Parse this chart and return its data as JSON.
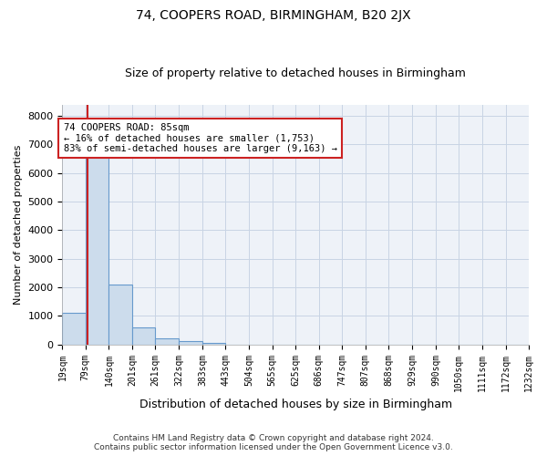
{
  "title": "74, COOPERS ROAD, BIRMINGHAM, B20 2JX",
  "subtitle": "Size of property relative to detached houses in Birmingham",
  "xlabel": "Distribution of detached houses by size in Birmingham",
  "ylabel": "Number of detached properties",
  "footer_line1": "Contains HM Land Registry data © Crown copyright and database right 2024.",
  "footer_line2": "Contains public sector information licensed under the Open Government Licence v3.0.",
  "annotation_line1": "74 COOPERS ROAD: 85sqm",
  "annotation_line2": "← 16% of detached houses are smaller (1,753)",
  "annotation_line3": "83% of semi-detached houses are larger (9,163) →",
  "property_size": 85,
  "bar_color": "#ccdcec",
  "bar_edge_color": "#6699cc",
  "red_line_color": "#cc2222",
  "grid_color": "#c8d4e4",
  "background_color": "#eef2f8",
  "bin_edges": [
    19,
    79,
    140,
    201,
    261,
    322,
    383,
    443,
    504,
    565,
    625,
    686,
    747,
    807,
    868,
    929,
    990,
    1050,
    1111,
    1172,
    1232
  ],
  "bar_heights": [
    1100,
    6600,
    2100,
    590,
    230,
    110,
    60,
    10,
    0,
    0,
    0,
    0,
    0,
    0,
    0,
    0,
    0,
    0,
    0,
    0
  ],
  "ylim": [
    0,
    8400
  ],
  "yticks": [
    0,
    1000,
    2000,
    3000,
    4000,
    5000,
    6000,
    7000,
    8000
  ],
  "title_fontsize": 10,
  "subtitle_fontsize": 9
}
